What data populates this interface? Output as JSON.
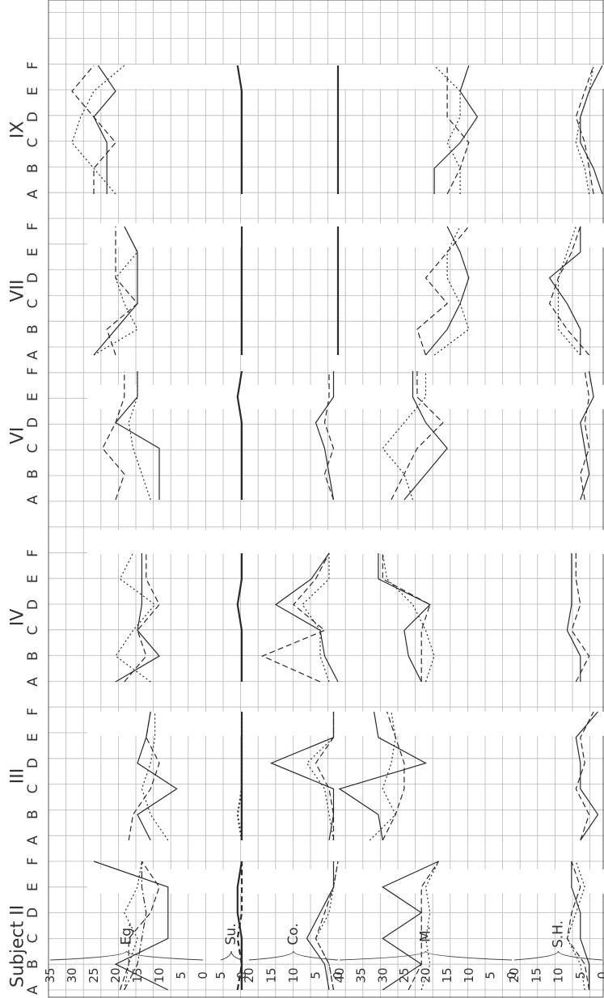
{
  "chart_data": {
    "type": "line",
    "orientation": "rotated-90-ccw",
    "subject_label": "Subject",
    "subjects": [
      "II",
      "III",
      "IV",
      "VI",
      "VII",
      "IX"
    ],
    "conditions": [
      "A",
      "B",
      "C",
      "D",
      "E",
      "F"
    ],
    "measures": [
      {
        "name": "Eg.",
        "ticks": [
          "35",
          "30",
          "25",
          "20",
          "15",
          "10",
          "5",
          "0"
        ],
        "range": [
          0,
          35
        ]
      },
      {
        "name": "Su.",
        "ticks": [
          "5",
          "0"
        ],
        "range": [
          0,
          5
        ]
      },
      {
        "name": "Co.",
        "ticks": [
          "20",
          "15",
          "10",
          "5",
          "0"
        ],
        "range": [
          0,
          20
        ]
      },
      {
        "name": "M.",
        "ticks": [
          "40",
          "35",
          "30",
          "25",
          "20",
          "15",
          "10",
          "5",
          "0"
        ],
        "range": [
          0,
          40
        ]
      },
      {
        "name": "S.H.",
        "ticks": [
          "20",
          "15",
          "10",
          "5",
          "0"
        ],
        "range": [
          0,
          20
        ]
      }
    ],
    "line_styles": [
      "solid",
      "dashed",
      "dotted",
      "dashdot"
    ],
    "series": [
      {
        "subject": "II",
        "measure": "Eg.",
        "style": "solid",
        "values": [
          8,
          20,
          8,
          8,
          8,
          25
        ]
      },
      {
        "subject": "II",
        "measure": "Eg.",
        "style": "dashed",
        "values": [
          19,
          17,
          17,
          12,
          10,
          14
        ]
      },
      {
        "subject": "II",
        "measure": "Eg.",
        "style": "dotted",
        "values": [
          18,
          17,
          15,
          18,
          15,
          14
        ]
      },
      {
        "subject": "II",
        "measure": "Eg.",
        "style": "dashdot",
        "values": [
          18,
          15,
          14,
          13,
          14,
          14
        ]
      },
      {
        "subject": "II",
        "measure": "Su.",
        "style": "solid",
        "values": [
          0,
          0,
          0,
          1,
          1,
          0
        ]
      },
      {
        "subject": "II",
        "measure": "Su.",
        "style": "dashed",
        "values": [
          1,
          0,
          1,
          0,
          0,
          0
        ]
      },
      {
        "subject": "II",
        "measure": "Co.",
        "style": "solid",
        "values": [
          2,
          3,
          7,
          4,
          1,
          1
        ]
      },
      {
        "subject": "II",
        "measure": "Co.",
        "style": "dashed",
        "values": [
          1,
          2,
          5,
          3,
          1,
          0
        ]
      },
      {
        "subject": "II",
        "measure": "Co.",
        "style": "dotted",
        "values": [
          1,
          2,
          5,
          2,
          1,
          0
        ]
      },
      {
        "subject": "II",
        "measure": "M.",
        "style": "solid",
        "values": [
          30,
          21,
          30,
          21,
          30,
          17
        ]
      },
      {
        "subject": "II",
        "measure": "M.",
        "style": "dashed",
        "values": [
          24,
          21,
          21,
          21,
          21,
          17
        ]
      },
      {
        "subject": "II",
        "measure": "M.",
        "style": "dotted",
        "values": [
          21,
          19,
          20,
          19,
          20,
          17
        ]
      },
      {
        "subject": "II",
        "measure": "S.H.",
        "style": "solid",
        "values": [
          3,
          3,
          5,
          5,
          7,
          7
        ]
      },
      {
        "subject": "II",
        "measure": "S.H.",
        "style": "dashed",
        "values": [
          3,
          4,
          8,
          7,
          5,
          7
        ]
      },
      {
        "subject": "II",
        "measure": "S.H.",
        "style": "dotted",
        "values": [
          4,
          5,
          8,
          6,
          4,
          6
        ]
      },
      {
        "subject": "III",
        "measure": "Eg.",
        "style": "solid",
        "values": [
          12,
          15,
          6,
          15,
          13,
          12
        ]
      },
      {
        "subject": "III",
        "measure": "Eg.",
        "style": "dashed",
        "values": [
          17,
          16,
          12,
          10,
          13,
          12
        ]
      },
      {
        "subject": "III",
        "measure": "Eg.",
        "style": "dotted",
        "values": [
          8,
          12,
          14,
          12,
          11,
          11
        ]
      },
      {
        "subject": "III",
        "measure": "Su.",
        "style": "solid",
        "values": [
          0,
          0,
          0,
          0,
          0,
          0
        ]
      },
      {
        "subject": "III",
        "measure": "Su.",
        "style": "dotted",
        "values": [
          0,
          1,
          0,
          0,
          0,
          0
        ]
      },
      {
        "subject": "III",
        "measure": "Co.",
        "style": "solid",
        "values": [
          2,
          1,
          1,
          15,
          1,
          1
        ]
      },
      {
        "subject": "III",
        "measure": "Co.",
        "style": "dashed",
        "values": [
          1,
          1,
          2,
          5,
          1,
          1
        ]
      },
      {
        "subject": "III",
        "measure": "Co.",
        "style": "dotted",
        "values": [
          1,
          2,
          3,
          7,
          1,
          1
        ]
      },
      {
        "subject": "III",
        "measure": "M.",
        "style": "solid",
        "values": [
          30,
          31,
          40,
          20,
          31,
          32
        ]
      },
      {
        "subject": "III",
        "measure": "M.",
        "style": "dashed",
        "values": [
          30,
          27,
          25,
          25,
          27,
          29
        ]
      },
      {
        "subject": "III",
        "measure": "M.",
        "style": "dotted",
        "values": [
          33,
          27,
          30,
          28,
          27,
          28
        ]
      },
      {
        "subject": "III",
        "measure": "S.H.",
        "style": "solid",
        "values": [
          5,
          1,
          5,
          5,
          6,
          1
        ]
      },
      {
        "subject": "III",
        "measure": "S.H.",
        "style": "dashed",
        "values": [
          5,
          3,
          6,
          4,
          5,
          2
        ]
      },
      {
        "subject": "IV",
        "measure": "Eg.",
        "style": "solid",
        "values": [
          20,
          10,
          15,
          14,
          14,
          14
        ]
      },
      {
        "subject": "IV",
        "measure": "Eg.",
        "style": "dashed",
        "values": [
          18,
          13,
          15,
          10,
          13,
          13
        ]
      },
      {
        "subject": "IV",
        "measure": "Eg.",
        "style": "dotted",
        "values": [
          12,
          20,
          16,
          11,
          19,
          16
        ]
      },
      {
        "subject": "IV",
        "measure": "Su.",
        "style": "solid",
        "values": [
          0,
          0,
          0,
          1,
          0,
          0
        ]
      },
      {
        "subject": "IV",
        "measure": "Co.",
        "style": "solid",
        "values": [
          0,
          3,
          4,
          14,
          6,
          2
        ]
      },
      {
        "subject": "IV",
        "measure": "Co.",
        "style": "dashed",
        "values": [
          4,
          17,
          3,
          10,
          5,
          2
        ]
      },
      {
        "subject": "IV",
        "measure": "Co.",
        "style": "dotted",
        "values": [
          2,
          4,
          4,
          8,
          2,
          2
        ]
      },
      {
        "subject": "IV",
        "measure": "M.",
        "style": "solid",
        "values": [
          21,
          24,
          25,
          19,
          31,
          31
        ]
      },
      {
        "subject": "IV",
        "measure": "M.",
        "style": "dashed",
        "values": [
          21,
          21,
          21,
          19,
          30,
          30
        ]
      },
      {
        "subject": "IV",
        "measure": "M.",
        "style": "dotted",
        "values": [
          20,
          18,
          20,
          23,
          29,
          30
        ]
      },
      {
        "subject": "IV",
        "measure": "S.H.",
        "style": "solid",
        "values": [
          5,
          5,
          8,
          7,
          7,
          7
        ]
      },
      {
        "subject": "IV",
        "measure": "S.H.",
        "style": "dashed",
        "values": [
          6,
          3,
          7,
          5,
          6,
          6
        ]
      },
      {
        "subject": "VI",
        "measure": "Eg.",
        "style": "solid",
        "values": [
          10,
          10,
          10,
          20,
          15,
          15
        ]
      },
      {
        "subject": "VI",
        "measure": "Eg.",
        "style": "dashed",
        "values": [
          20,
          18,
          23,
          20,
          18,
          18
        ]
      },
      {
        "subject": "VI",
        "measure": "Eg.",
        "style": "dotted",
        "values": [
          12,
          14,
          16,
          17,
          15,
          15
        ]
      },
      {
        "subject": "VI",
        "measure": "Su.",
        "style": "solid",
        "values": [
          0,
          0,
          0,
          0,
          1,
          0
        ]
      },
      {
        "subject": "VI",
        "measure": "Co.",
        "style": "solid",
        "values": [
          1,
          2,
          3,
          5,
          1,
          1
        ]
      },
      {
        "subject": "VI",
        "measure": "Co.",
        "style": "dashed",
        "values": [
          1,
          3,
          1,
          3,
          2,
          2
        ]
      },
      {
        "subject": "VI",
        "measure": "M.",
        "style": "solid",
        "values": [
          25,
          20,
          15,
          20,
          23,
          23
        ]
      },
      {
        "subject": "VI",
        "measure": "M.",
        "style": "dashed",
        "values": [
          28,
          25,
          22,
          16,
          22,
          22
        ]
      },
      {
        "subject": "VI",
        "measure": "M.",
        "style": "dotted",
        "values": [
          23,
          25,
          30,
          25,
          20,
          20
        ]
      },
      {
        "subject": "VI",
        "measure": "S.H.",
        "style": "solid",
        "values": [
          5,
          3,
          4,
          5,
          2,
          3
        ]
      },
      {
        "subject": "VI",
        "measure": "S.H.",
        "style": "dashed",
        "values": [
          4,
          5,
          3,
          4,
          3,
          4
        ]
      },
      {
        "subject": "VII",
        "measure": "Eg.",
        "style": "solid",
        "values": [
          25,
          20,
          15,
          15,
          15,
          18
        ]
      },
      {
        "subject": "VII",
        "measure": "Eg.",
        "style": "dashed",
        "values": [
          20,
          22,
          15,
          20,
          20,
          20
        ]
      },
      {
        "subject": "VII",
        "measure": "Eg.",
        "style": "dotted",
        "values": [
          25,
          15,
          18,
          20,
          15,
          18
        ]
      },
      {
        "subject": "VII",
        "measure": "Su.",
        "style": "solid",
        "values": [
          0,
          0,
          0,
          0,
          0,
          0
        ]
      },
      {
        "subject": "VII",
        "measure": "Co.",
        "style": "solid",
        "values": [
          0,
          0,
          0,
          0,
          0,
          0
        ]
      },
      {
        "subject": "VII",
        "measure": "M.",
        "style": "solid",
        "values": [
          20,
          15,
          12,
          10,
          12,
          15
        ]
      },
      {
        "subject": "VII",
        "measure": "M.",
        "style": "dashed",
        "values": [
          20,
          22,
          15,
          20,
          15,
          10
        ]
      },
      {
        "subject": "VII",
        "measure": "M.",
        "style": "dotted",
        "values": [
          18,
          10,
          12,
          15,
          15,
          12
        ]
      },
      {
        "subject": "VII",
        "measure": "S.H.",
        "style": "solid",
        "values": [
          5,
          5,
          8,
          12,
          5,
          5
        ]
      },
      {
        "subject": "VII",
        "measure": "S.H.",
        "style": "dashed",
        "values": [
          3,
          8,
          12,
          10,
          7,
          5
        ]
      },
      {
        "subject": "VII",
        "measure": "S.H.",
        "style": "dotted",
        "values": [
          5,
          10,
          10,
          10,
          8,
          6
        ]
      },
      {
        "subject": "IX",
        "measure": "Eg.",
        "style": "solid",
        "values": [
          22,
          22,
          22,
          25,
          20,
          24
        ]
      },
      {
        "subject": "IX",
        "measure": "Eg.",
        "style": "dashed",
        "values": [
          25,
          25,
          20,
          25,
          30,
          25
        ]
      },
      {
        "subject": "IX",
        "measure": "Eg.",
        "style": "dotted",
        "values": [
          20,
          25,
          30,
          28,
          25,
          18
        ]
      },
      {
        "subject": "IX",
        "measure": "Su.",
        "style": "solid",
        "values": [
          0,
          0,
          0,
          0,
          0,
          1
        ]
      },
      {
        "subject": "IX",
        "measure": "Co.",
        "style": "solid",
        "values": [
          0,
          0,
          0,
          0,
          0,
          0
        ]
      },
      {
        "subject": "IX",
        "measure": "M.",
        "style": "solid",
        "values": [
          18,
          18,
          12,
          8,
          12,
          10
        ]
      },
      {
        "subject": "IX",
        "measure": "M.",
        "style": "dashed",
        "values": [
          15,
          12,
          10,
          15,
          15,
          15
        ]
      },
      {
        "subject": "IX",
        "measure": "M.",
        "style": "dotted",
        "values": [
          12,
          12,
          15,
          12,
          12,
          18
        ]
      },
      {
        "subject": "IX",
        "measure": "S.H.",
        "style": "solid",
        "values": [
          0,
          2,
          5,
          5,
          3,
          0
        ]
      },
      {
        "subject": "IX",
        "measure": "S.H.",
        "style": "dashed",
        "values": [
          2,
          3,
          4,
          6,
          4,
          2
        ]
      },
      {
        "subject": "IX",
        "measure": "S.H.",
        "style": "dotted",
        "values": [
          3,
          4,
          6,
          5,
          3,
          2
        ]
      }
    ]
  }
}
